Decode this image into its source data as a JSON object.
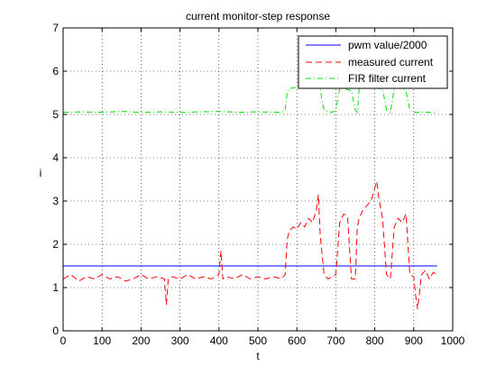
{
  "chart_data": {
    "type": "line",
    "title": "current monitor-step response",
    "xlabel": "t",
    "ylabel": "i",
    "xlim": [
      0,
      1000
    ],
    "ylim": [
      0,
      7
    ],
    "xticks": [
      0,
      100,
      200,
      300,
      400,
      500,
      600,
      700,
      800,
      900,
      1000
    ],
    "yticks": [
      0,
      1,
      2,
      3,
      4,
      5,
      6,
      7
    ],
    "grid": true,
    "legend_position": "top-right",
    "series": [
      {
        "name": "pwm value/2000",
        "color": "#0000ff",
        "style": "solid",
        "x": [
          0,
          960
        ],
        "y": [
          1.5,
          1.5
        ]
      },
      {
        "name": "measured current",
        "color": "#ff0000",
        "style": "dashed",
        "x": [
          0,
          20,
          40,
          60,
          80,
          100,
          120,
          140,
          160,
          180,
          200,
          220,
          240,
          260,
          265,
          270,
          280,
          300,
          320,
          340,
          360,
          380,
          400,
          405,
          410,
          420,
          440,
          460,
          480,
          500,
          520,
          540,
          560,
          570,
          575,
          580,
          590,
          600,
          610,
          620,
          630,
          640,
          650,
          655,
          660,
          670,
          680,
          690,
          700,
          710,
          715,
          720,
          730,
          740,
          750,
          755,
          760,
          770,
          780,
          790,
          800,
          805,
          810,
          820,
          830,
          840,
          850,
          860,
          870,
          880,
          890,
          900,
          905,
          910,
          920,
          930,
          940,
          950,
          960
        ],
        "y": [
          1.2,
          1.3,
          1.15,
          1.25,
          1.2,
          1.3,
          1.2,
          1.25,
          1.15,
          1.2,
          1.3,
          1.2,
          1.25,
          1.2,
          0.6,
          1.2,
          1.25,
          1.2,
          1.3,
          1.2,
          1.25,
          1.2,
          1.3,
          1.85,
          1.2,
          1.25,
          1.2,
          1.3,
          1.2,
          1.25,
          1.2,
          1.25,
          1.2,
          1.3,
          2.1,
          2.3,
          2.4,
          2.35,
          2.5,
          2.4,
          2.6,
          2.5,
          2.8,
          3.15,
          2.2,
          1.3,
          1.2,
          1.25,
          1.3,
          2.5,
          2.6,
          2.7,
          2.65,
          1.2,
          1.2,
          2.4,
          2.6,
          2.8,
          2.9,
          3.0,
          3.3,
          3.45,
          3.1,
          2.6,
          1.3,
          1.2,
          2.4,
          2.6,
          2.5,
          2.7,
          1.3,
          1.25,
          0.8,
          0.5,
          1.3,
          1.4,
          1.2,
          1.35,
          1.3
        ]
      },
      {
        "name": "FIR filter current",
        "color": "#00e000",
        "style": "dashdot",
        "x": [
          0,
          50,
          100,
          150,
          200,
          250,
          300,
          350,
          400,
          450,
          500,
          560,
          570,
          575,
          580,
          600,
          620,
          640,
          660,
          665,
          670,
          690,
          700,
          710,
          715,
          720,
          740,
          750,
          755,
          760,
          780,
          800,
          810,
          820,
          830,
          840,
          850,
          860,
          870,
          880,
          890,
          900,
          950,
          960
        ],
        "y": [
          5.05,
          5.06,
          5.05,
          5.07,
          5.05,
          5.06,
          5.05,
          5.06,
          5.07,
          5.05,
          5.06,
          5.05,
          5.1,
          5.5,
          5.6,
          5.63,
          5.6,
          5.65,
          5.6,
          5.3,
          5.1,
          5.05,
          5.1,
          5.6,
          5.62,
          5.6,
          5.55,
          5.1,
          5.05,
          5.6,
          5.62,
          5.65,
          5.6,
          5.6,
          5.1,
          5.05,
          5.6,
          5.62,
          5.6,
          5.55,
          5.1,
          5.05,
          5.05,
          5.05
        ]
      }
    ]
  }
}
